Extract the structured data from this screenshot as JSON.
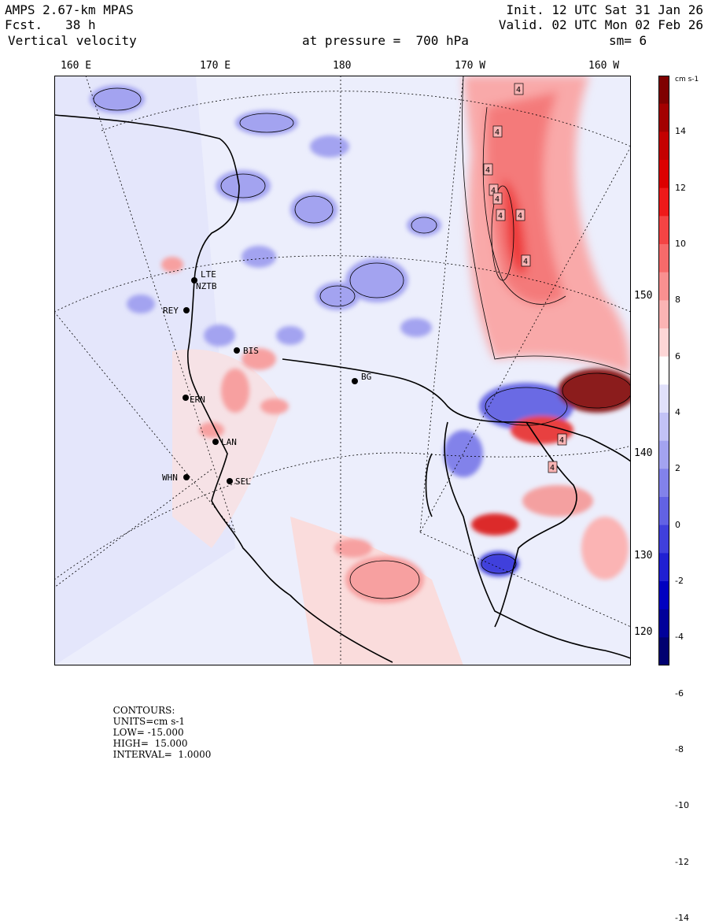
{
  "header": {
    "model": "AMPS 2.67-km MPAS",
    "forecast": "Fcst.   38 h",
    "field": "Vertical velocity",
    "init": "Init. 12 UTC Sat 31 Jan 26",
    "valid": "Valid. 02 UTC Mon 02 Feb 26",
    "level": "at pressure =  700 hPa",
    "smoothing": "sm= 6"
  },
  "lon_labels": [
    "160 E",
    "170 E",
    "180",
    "170 W",
    "160 W"
  ],
  "lat_labels": [
    "150 W",
    "140 W",
    "130 W",
    "120 W"
  ],
  "stations": [
    "LTE",
    "NZTB",
    "REY",
    "BIS",
    "BG",
    "ERN",
    "LAN",
    "WHN",
    "SEL"
  ],
  "contour_labels": [
    "4",
    "4",
    "4",
    "4",
    "4",
    "4",
    "4",
    "4",
    "4",
    "4"
  ],
  "colorbar": {
    "units": "cm s-1",
    "ticks": [
      "14",
      "12",
      "10",
      "8",
      "6",
      "4",
      "2",
      "0",
      "-2",
      "-4",
      "-6",
      "-8",
      "-10",
      "-12",
      "-14"
    ],
    "colors": [
      "#7f0000",
      "#a30000",
      "#c40000",
      "#dc0000",
      "#ee1a1a",
      "#f44444",
      "#f76a6a",
      "#f99090",
      "#fbb4b4",
      "#fdd6d6",
      "#ffffff",
      "#e0e0fb",
      "#c2c2f6",
      "#a3a3f0",
      "#8282ea",
      "#6262e4",
      "#4040dc",
      "#2020d2",
      "#0000c0",
      "#00009a",
      "#000070"
    ]
  },
  "footer": {
    "contours": "CONTOURS:",
    "units": "UNITS=cm s-1",
    "low": "LOW= -15.000",
    "high": "HIGH=  15.000",
    "interval": "INTERVAL=  1.0000"
  }
}
